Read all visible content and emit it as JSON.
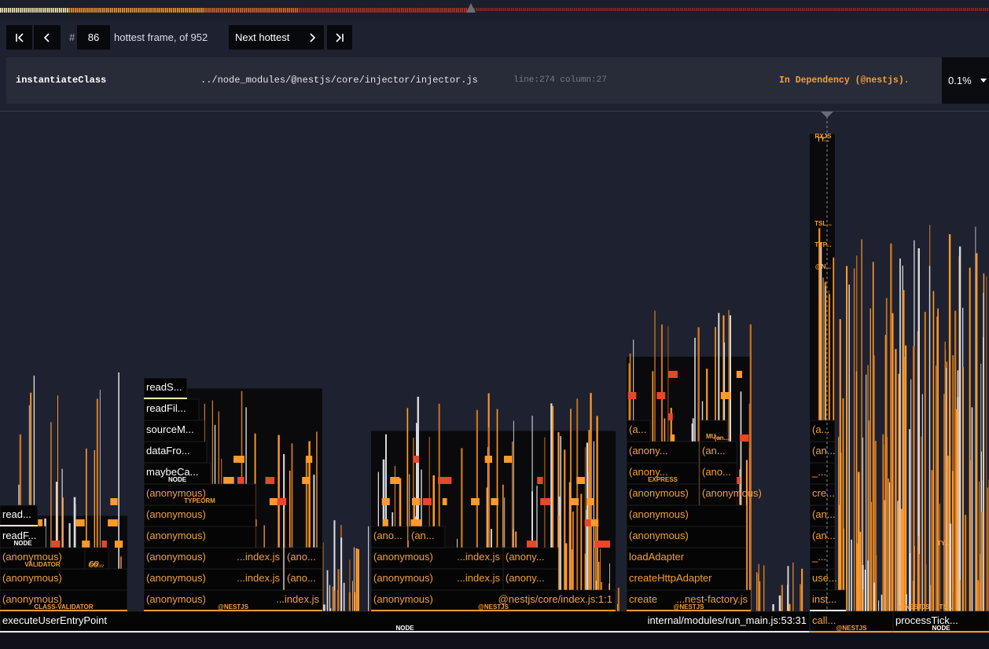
{
  "nav": {
    "hash": "#",
    "frame_number": "86",
    "of_text": "hottest frame, of 952",
    "next_hottest_label": "Next hottest"
  },
  "selected": {
    "function": "instantiateClass",
    "path": "../node_modules/@nestjs/core/injector/injector.js",
    "line_col": "line:274 column:27",
    "dependency": "In Dependency  (@nestjs).",
    "percent": "0.1%"
  },
  "colors": {
    "frame_bg": "#050505",
    "frame_border": "#3c3c3c",
    "dependency_text": "#f2a03c",
    "heat_low": "#fff0b5",
    "heat_mid": "#ff9a2a",
    "heat_high": "#e8472a"
  },
  "icons": [
    "first-frame-icon",
    "prev-frame-icon",
    "next-frame-icon",
    "last-frame-icon",
    "dropdown-caret-icon"
  ],
  "frames": [
    {
      "name": "executeUserEntryPoint",
      "label2": "internal/modules/run_main.js:53:31",
      "tag": "NODE",
      "kind": "node"
    },
    {
      "name": "call...",
      "tag": "@NESTJS",
      "kind": "dep"
    },
    {
      "name": "processTick...",
      "tag": "NODE",
      "kind": "node"
    },
    {
      "name": "(anonymous)",
      "tag": "CLASS-VALIDATOR",
      "kind": "dep"
    },
    {
      "name": "(anonymous)",
      "kind": "dep"
    },
    {
      "name": "(anonymous)",
      "tag": "VALIDATOR",
      "kind": "dep"
    },
    {
      "name": "readF...",
      "tag": "NODE",
      "kind": "node"
    },
    {
      "name": "read...",
      "kind": "node"
    },
    {
      "name": "GO...",
      "kind": "tag"
    },
    {
      "name": "(anonymous)",
      "label2": "...index.js",
      "tag": "@NESTJS",
      "kind": "dep"
    },
    {
      "name": "(anonymous)",
      "label2": "...index.js",
      "kind": "dep"
    },
    {
      "name": "(anonymous)",
      "label2": "...index.js",
      "kind": "dep"
    },
    {
      "name": "(ano...",
      "kind": "dep"
    },
    {
      "name": "(ano...",
      "kind": "dep"
    },
    {
      "name": "(ano...",
      "kind": "dep"
    },
    {
      "name": "(anonymous)",
      "kind": "dep"
    },
    {
      "name": "(anonymous)",
      "kind": "dep"
    },
    {
      "name": "(anonymous)",
      "tag": "TYPEORM",
      "kind": "dep"
    },
    {
      "name": "maybeCa...",
      "tag": "NODE",
      "kind": "node"
    },
    {
      "name": "dataFro...",
      "kind": "node"
    },
    {
      "name": "sourceM...",
      "kind": "node"
    },
    {
      "name": "readFil...",
      "kind": "node"
    },
    {
      "name": "readS...",
      "kind": "node"
    },
    {
      "name": "(anonymous)",
      "label2": "@nestjs/core/index.js:1:1",
      "tag": "@NESTJS",
      "kind": "dep"
    },
    {
      "name": "(anonymous)",
      "label2": "...index.js",
      "kind": "dep"
    },
    {
      "name": "(anony...",
      "kind": "dep"
    },
    {
      "name": "(anonymous)",
      "label2": "...index.js",
      "kind": "dep"
    },
    {
      "name": "(anony...",
      "kind": "dep"
    },
    {
      "name": "(ano...",
      "kind": "dep"
    },
    {
      "name": "(an...",
      "kind": "dep"
    },
    {
      "name": "create",
      "label2": "...nest-factory.js",
      "tag": "@NESTJS",
      "kind": "dep"
    },
    {
      "name": "createHttpAdapter",
      "kind": "dep"
    },
    {
      "name": "loadAdapter",
      "kind": "dep"
    },
    {
      "name": "(anonymous)",
      "kind": "dep"
    },
    {
      "name": "(anonymous)",
      "kind": "dep"
    },
    {
      "name": "(anonymous)",
      "kind": "dep"
    },
    {
      "name": "(anonymous)",
      "kind": "dep"
    },
    {
      "name": "(anony...",
      "tag": "EXPRESS",
      "kind": "dep"
    },
    {
      "name": "(anony...",
      "kind": "dep"
    },
    {
      "name": "(a...",
      "kind": "dep"
    },
    {
      "name": "(ano...",
      "kind": "dep"
    },
    {
      "name": "(an...",
      "kind": "dep"
    },
    {
      "name": "(an...",
      "kind": "dep"
    },
    {
      "name": "MU...",
      "kind": "tag"
    },
    {
      "name": "inst...",
      "kind": "dep"
    },
    {
      "name": "use...",
      "kind": "dep"
    },
    {
      "name": "_...",
      "kind": "dep"
    },
    {
      "name": "(an...",
      "kind": "dep"
    },
    {
      "name": "(an...",
      "kind": "dep"
    },
    {
      "name": "cre...",
      "kind": "dep"
    },
    {
      "name": "_...",
      "kind": "dep"
    },
    {
      "name": "(an...",
      "kind": "dep"
    },
    {
      "name": "(a...",
      "kind": "dep"
    },
    {
      "name": "RXJS",
      "kind": "tag"
    },
    {
      "name": "@N...",
      "kind": "tag"
    },
    {
      "name": "TYP...",
      "kind": "tag"
    },
    {
      "name": "TSL...",
      "kind": "tag"
    },
    {
      "name": "TY...",
      "kind": "tag"
    },
    {
      "name": "@NESTJS",
      "kind": "tag"
    },
    {
      "name": "TS...",
      "kind": "tag"
    },
    {
      "name": "TY...",
      "kind": "tag"
    }
  ]
}
